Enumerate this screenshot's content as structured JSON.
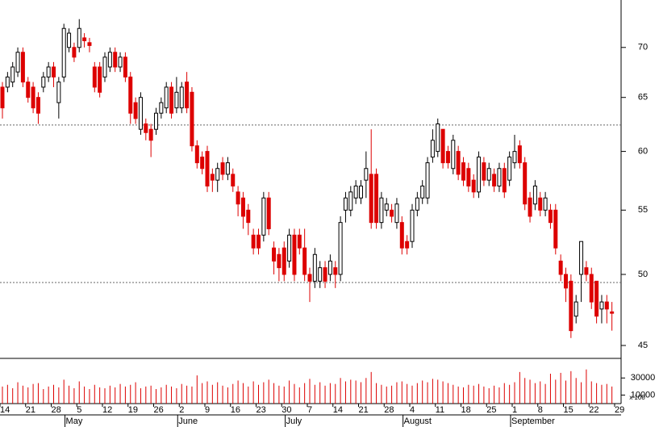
{
  "chart_data": {
    "type": "candlestick",
    "categories": [
      "14",
      null,
      null,
      null,
      null,
      "21",
      null,
      null,
      null,
      null,
      "28",
      null,
      null,
      null,
      null,
      "5",
      null,
      null,
      null,
      null,
      "12",
      null,
      null,
      null,
      null,
      "19",
      null,
      null,
      null,
      null,
      "26",
      null,
      null,
      null,
      null,
      "2",
      null,
      null,
      null,
      null,
      "9",
      null,
      null,
      null,
      null,
      "16",
      null,
      null,
      null,
      null,
      "23",
      null,
      null,
      null,
      null,
      "30",
      null,
      null,
      null,
      null,
      "7",
      null,
      null,
      null,
      null,
      "14",
      null,
      null,
      null,
      null,
      "21",
      null,
      null,
      null,
      null,
      "28",
      null,
      null,
      null,
      null,
      "4",
      null,
      null,
      null,
      null,
      "11",
      null,
      null,
      null,
      null,
      "18",
      null,
      null,
      null,
      null,
      "25",
      null,
      null,
      null,
      null,
      "1",
      null,
      null,
      null,
      null,
      "8",
      null,
      null,
      null,
      null,
      "15",
      null,
      null,
      null,
      null,
      "22",
      null,
      null,
      null,
      null,
      "29"
    ],
    "months": [
      null,
      null,
      null,
      null,
      null,
      null,
      null,
      null,
      null,
      null,
      null,
      null,
      null,
      "May",
      null,
      null,
      null,
      null,
      null,
      null,
      null,
      null,
      null,
      null,
      null,
      null,
      null,
      null,
      null,
      null,
      null,
      null,
      null,
      null,
      null,
      "June",
      null,
      null,
      null,
      null,
      null,
      null,
      null,
      null,
      null,
      null,
      null,
      null,
      null,
      null,
      null,
      null,
      null,
      null,
      null,
      null,
      "July",
      null,
      null,
      null,
      null,
      null,
      null,
      null,
      null,
      null,
      null,
      null,
      null,
      null,
      null,
      null,
      null,
      null,
      null,
      null,
      null,
      null,
      null,
      "August",
      null,
      null,
      null,
      null,
      null,
      null,
      null,
      null,
      null,
      null,
      null,
      null,
      null,
      null,
      null,
      null,
      null,
      null,
      null,
      null,
      "September",
      null,
      null,
      null,
      null,
      null,
      null,
      null,
      null,
      null,
      null,
      null,
      null,
      null,
      null,
      null,
      null,
      null,
      null,
      null,
      null
    ],
    "open": [
      66,
      66,
      66.5,
      67.5,
      69.5,
      66.5,
      66,
      65,
      66,
      67,
      68,
      64.5,
      67,
      70,
      70,
      70,
      71,
      70.5,
      68,
      68,
      67,
      68,
      69.5,
      68,
      69,
      67,
      64.5,
      62,
      62.5,
      62,
      62,
      63.5,
      64,
      66,
      64,
      64,
      66.5,
      65.5,
      60.5,
      59.5,
      60,
      58,
      57.5,
      59,
      58,
      58,
      56.5,
      56,
      55,
      53,
      53,
      53,
      56,
      52,
      51.5,
      52,
      51,
      53,
      53,
      52,
      50,
      49.5,
      49.5,
      50.5,
      50,
      50.5,
      50,
      55,
      55,
      56,
      56,
      57.5,
      58,
      58,
      54,
      55,
      55,
      54,
      54,
      52.5,
      52.5,
      55,
      56,
      56,
      59.5,
      60,
      62,
      60,
      58.5,
      60,
      59,
      58.5,
      57.5,
      56.5,
      59,
      57.5,
      58,
      57,
      58.5,
      57.5,
      59,
      60.5,
      59,
      56,
      55.5,
      56,
      55,
      55,
      55,
      51,
      50,
      49.5,
      47,
      50,
      50.5,
      50,
      49.5,
      47.5,
      48,
      47.3,
      null
    ],
    "high": [
      66.5,
      67.5,
      68.5,
      70,
      70,
      67,
      66.5,
      65.5,
      67.5,
      68.5,
      68.5,
      67,
      72.5,
      72,
      70.5,
      73,
      71.5,
      71,
      68.5,
      68.5,
      69.5,
      70,
      70,
      69.5,
      69.5,
      67.5,
      65,
      65.5,
      63,
      62.5,
      64,
      65,
      66.5,
      66.5,
      67,
      66.5,
      67.5,
      66,
      61,
      60,
      60.5,
      58.5,
      59,
      59.5,
      59.5,
      58.5,
      57,
      56.5,
      55.5,
      53.5,
      53.5,
      56.5,
      56.5,
      52.5,
      52,
      52.5,
      53.5,
      53.5,
      53.5,
      53.5,
      50.5,
      52,
      51,
      51,
      51.5,
      51,
      54.5,
      56.5,
      57,
      57.5,
      57.5,
      60,
      62,
      58.5,
      56.5,
      56,
      55.5,
      56,
      54.5,
      53,
      55.5,
      56.5,
      57.5,
      59.5,
      62,
      63,
      62,
      60.5,
      61.5,
      60.5,
      59.5,
      59,
      58,
      60,
      59.5,
      59,
      58.5,
      59,
      59,
      60,
      61.5,
      61,
      59.5,
      56.5,
      57.5,
      56.5,
      56.5,
      55.5,
      55.5,
      51.5,
      50.5,
      50,
      48.5,
      52.5,
      51,
      50.5,
      49.5,
      48.5,
      48.5,
      48,
      null
    ],
    "low": [
      63,
      65.5,
      66,
      67,
      66,
      64.5,
      63.5,
      62.5,
      65.5,
      66.5,
      66,
      63,
      66.5,
      69.5,
      68.5,
      69.5,
      70,
      69.5,
      65.5,
      65,
      66.5,
      67.5,
      67.5,
      67.5,
      66.5,
      62.5,
      62.5,
      61.5,
      61,
      59.5,
      61.5,
      63,
      63.5,
      63,
      63.5,
      63.5,
      63.5,
      60,
      58.5,
      58,
      56.5,
      56.5,
      56.5,
      57.5,
      57.5,
      56.5,
      54.5,
      53.5,
      53,
      51.5,
      51.5,
      52.5,
      53,
      50,
      49.5,
      49.5,
      50.5,
      49.5,
      51.5,
      49.5,
      48,
      49,
      49,
      49,
      49.5,
      49,
      49.5,
      54,
      54.5,
      55.5,
      55.5,
      56,
      53.5,
      53.5,
      53.5,
      54.5,
      54,
      53.5,
      51.5,
      51.5,
      52,
      54.5,
      55.5,
      55.5,
      59,
      59.5,
      58.5,
      58.5,
      58,
      57.5,
      57,
      56.5,
      56,
      56,
      57,
      57,
      56.5,
      56.5,
      56,
      57,
      58.5,
      58.5,
      55,
      54,
      55,
      54.5,
      54.5,
      53.5,
      51.5,
      49.5,
      48,
      45.5,
      46.5,
      48,
      49.5,
      47.5,
      46.5,
      46.5,
      46.5,
      46,
      null
    ],
    "close": [
      64,
      67,
      68,
      69.5,
      66.5,
      65,
      64,
      63.5,
      67,
      68,
      67,
      66.5,
      72,
      71.5,
      69,
      72,
      70.7,
      70.2,
      66,
      65.5,
      69,
      69.5,
      68,
      69,
      67,
      63.5,
      63,
      65,
      61.7,
      61,
      63.5,
      64.5,
      66,
      63.5,
      65.5,
      66,
      64,
      60.5,
      59,
      58.5,
      57,
      57.5,
      58.5,
      58,
      59,
      57,
      55.5,
      54.5,
      54,
      52,
      52,
      56,
      53.5,
      51,
      50.5,
      50,
      53,
      50,
      52,
      50,
      49.5,
      51.5,
      50.5,
      49.5,
      51,
      50,
      54,
      56,
      56.5,
      57,
      57,
      58.5,
      54,
      54,
      56,
      55.5,
      54.5,
      55.5,
      52,
      52,
      55,
      56,
      57,
      59,
      61,
      62.5,
      59,
      59,
      61,
      58,
      57.5,
      57,
      56.5,
      59.5,
      57.5,
      58.5,
      57,
      58.5,
      56.5,
      59.5,
      60,
      59,
      55.5,
      54.5,
      57,
      55,
      56,
      54,
      52,
      50,
      49,
      46,
      48,
      52.5,
      50,
      48,
      47,
      48,
      47.5,
      47.2,
      null
    ],
    "volume": [
      20000,
      22000,
      18000,
      25000,
      21000,
      19000,
      23000,
      24000,
      17000,
      20000,
      22000,
      19000,
      28000,
      21000,
      18000,
      26000,
      20000,
      17000,
      22000,
      19000,
      18000,
      21000,
      19000,
      23000,
      20000,
      22000,
      25000,
      18000,
      20000,
      21000,
      17000,
      19000,
      22000,
      20000,
      18000,
      23000,
      21000,
      20000,
      33000,
      24000,
      26000,
      22000,
      25000,
      21000,
      19000,
      23000,
      27000,
      24000,
      20000,
      26000,
      22000,
      25000,
      28000,
      24000,
      21000,
      20000,
      27000,
      23000,
      19000,
      24000,
      29000,
      22000,
      25000,
      21000,
      24000,
      23000,
      30000,
      26000,
      28000,
      27000,
      25000,
      30000,
      37000,
      24000,
      22000,
      20000,
      21000,
      25000,
      26000,
      23000,
      21000,
      24000,
      27000,
      25000,
      29000,
      28000,
      26000,
      24000,
      22000,
      20000,
      19000,
      22000,
      21000,
      23000,
      20000,
      18000,
      21000,
      19000,
      24000,
      22000,
      25000,
      37000,
      30000,
      28000,
      24000,
      26000,
      23000,
      35000,
      28000,
      36000,
      27000,
      38000,
      30000,
      25000,
      40000,
      26000,
      24000,
      22000,
      23000,
      20000,
      null
    ],
    "up_color": "#ffffff",
    "down_color": "#dd0000",
    "volume_color": "#dd0000",
    "log_scale": true,
    "ylim": [
      44.2,
      75.1
    ],
    "yticks": [
      45,
      50,
      55,
      60,
      65,
      70
    ],
    "reference_lines": [
      62.4,
      49.4
    ],
    "volume_ylim": [
      0,
      52000
    ],
    "volume_ticks": [
      10000,
      30000
    ],
    "volume_unit": "x 100"
  }
}
